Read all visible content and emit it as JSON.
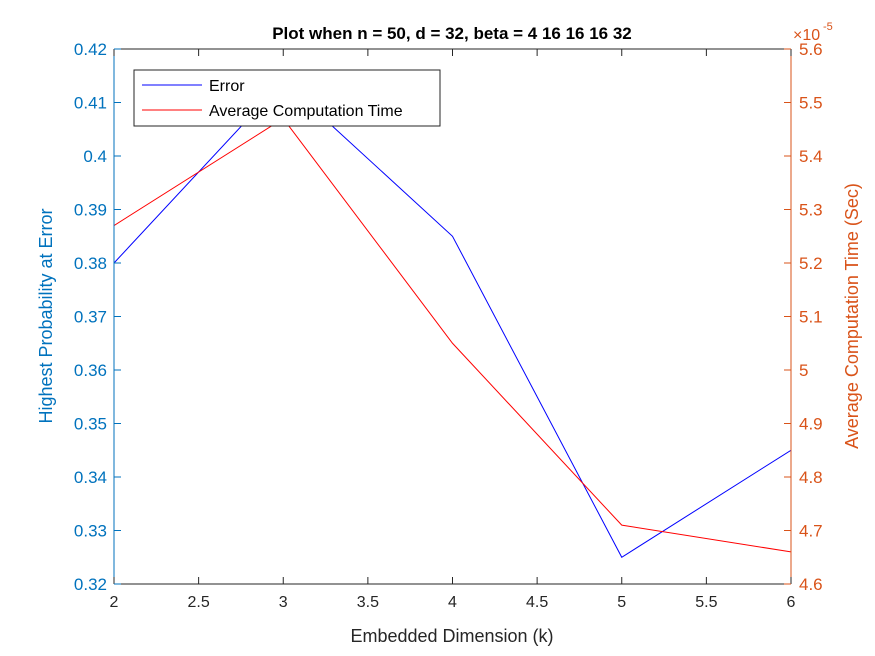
{
  "chart_data": {
    "type": "line",
    "title": "Plot when n = 50, d = 32, beta = 4  16  16  16  32",
    "xlabel": "Embedded Dimension (k)",
    "ylabel_left": "Highest Probability at Error",
    "ylabel_right": "Average Computation Time (Sec)",
    "right_exponent": "×10",
    "right_exponent_power": "-5",
    "xlim": [
      2,
      6
    ],
    "ylim_left": [
      0.32,
      0.42
    ],
    "ylim_right": [
      4.6,
      5.6
    ],
    "xticks": [
      "2",
      "2.5",
      "3",
      "3.5",
      "4",
      "4.5",
      "5",
      "5.5",
      "6"
    ],
    "yticks_left": [
      "0.32",
      "0.33",
      "0.34",
      "0.35",
      "0.36",
      "0.37",
      "0.38",
      "0.39",
      "0.4",
      "0.41",
      "0.42"
    ],
    "yticks_right": [
      "4.6",
      "4.7",
      "4.8",
      "4.9",
      "5",
      "5.1",
      "5.2",
      "5.3",
      "5.4",
      "5.5",
      "5.6"
    ],
    "grid": false,
    "legend_position": "top-left",
    "series": [
      {
        "name": "Error",
        "axis": "left",
        "color": "#0000ff",
        "x": [
          2,
          3,
          4,
          5,
          6
        ],
        "y": [
          0.38,
          0.414,
          0.385,
          0.325,
          0.345
        ]
      },
      {
        "name": "Average Computation Time",
        "axis": "right",
        "color": "#ff0000",
        "x": [
          2,
          3,
          4,
          5,
          6
        ],
        "y": [
          5.27,
          5.47,
          5.05,
          4.71,
          4.66
        ]
      }
    ],
    "left_axis_color": "#0072bd",
    "right_axis_color": "#d95319",
    "text_color": "#262626"
  }
}
